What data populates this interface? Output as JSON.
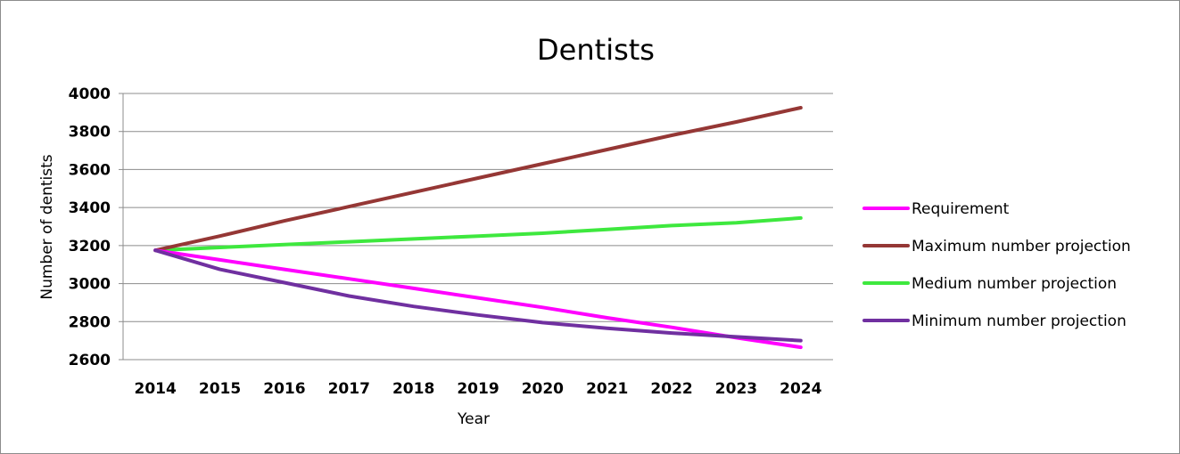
{
  "chart_data": {
    "type": "line",
    "title": "Dentists",
    "xlabel": "Year",
    "ylabel": "Number of dentists",
    "categories": [
      "2014",
      "2015",
      "2016",
      "2017",
      "2018",
      "2019",
      "2020",
      "2021",
      "2022",
      "2023",
      "2024"
    ],
    "ylim": [
      2600,
      4000
    ],
    "yticks": [
      2600,
      2800,
      3000,
      3200,
      3400,
      3600,
      3800,
      4000
    ],
    "grid": true,
    "legend_position": "right",
    "series": [
      {
        "name": "Requirement",
        "color": "#ff00ff",
        "values": [
          3175,
          3125,
          3075,
          3025,
          2975,
          2925,
          2875,
          2820,
          2770,
          2715,
          2665
        ]
      },
      {
        "name": "Maximum number projection",
        "color": "#953735",
        "values": [
          3175,
          3250,
          3330,
          3405,
          3480,
          3555,
          3630,
          3705,
          3780,
          3850,
          3925
        ]
      },
      {
        "name": "Medium number projection",
        "color": "#3ee83e",
        "values": [
          3175,
          3190,
          3205,
          3220,
          3235,
          3250,
          3265,
          3285,
          3305,
          3320,
          3345
        ]
      },
      {
        "name": "Minimum number projection",
        "color": "#7030a0",
        "values": [
          3175,
          3075,
          3005,
          2935,
          2880,
          2835,
          2795,
          2765,
          2740,
          2720,
          2700
        ]
      }
    ]
  }
}
